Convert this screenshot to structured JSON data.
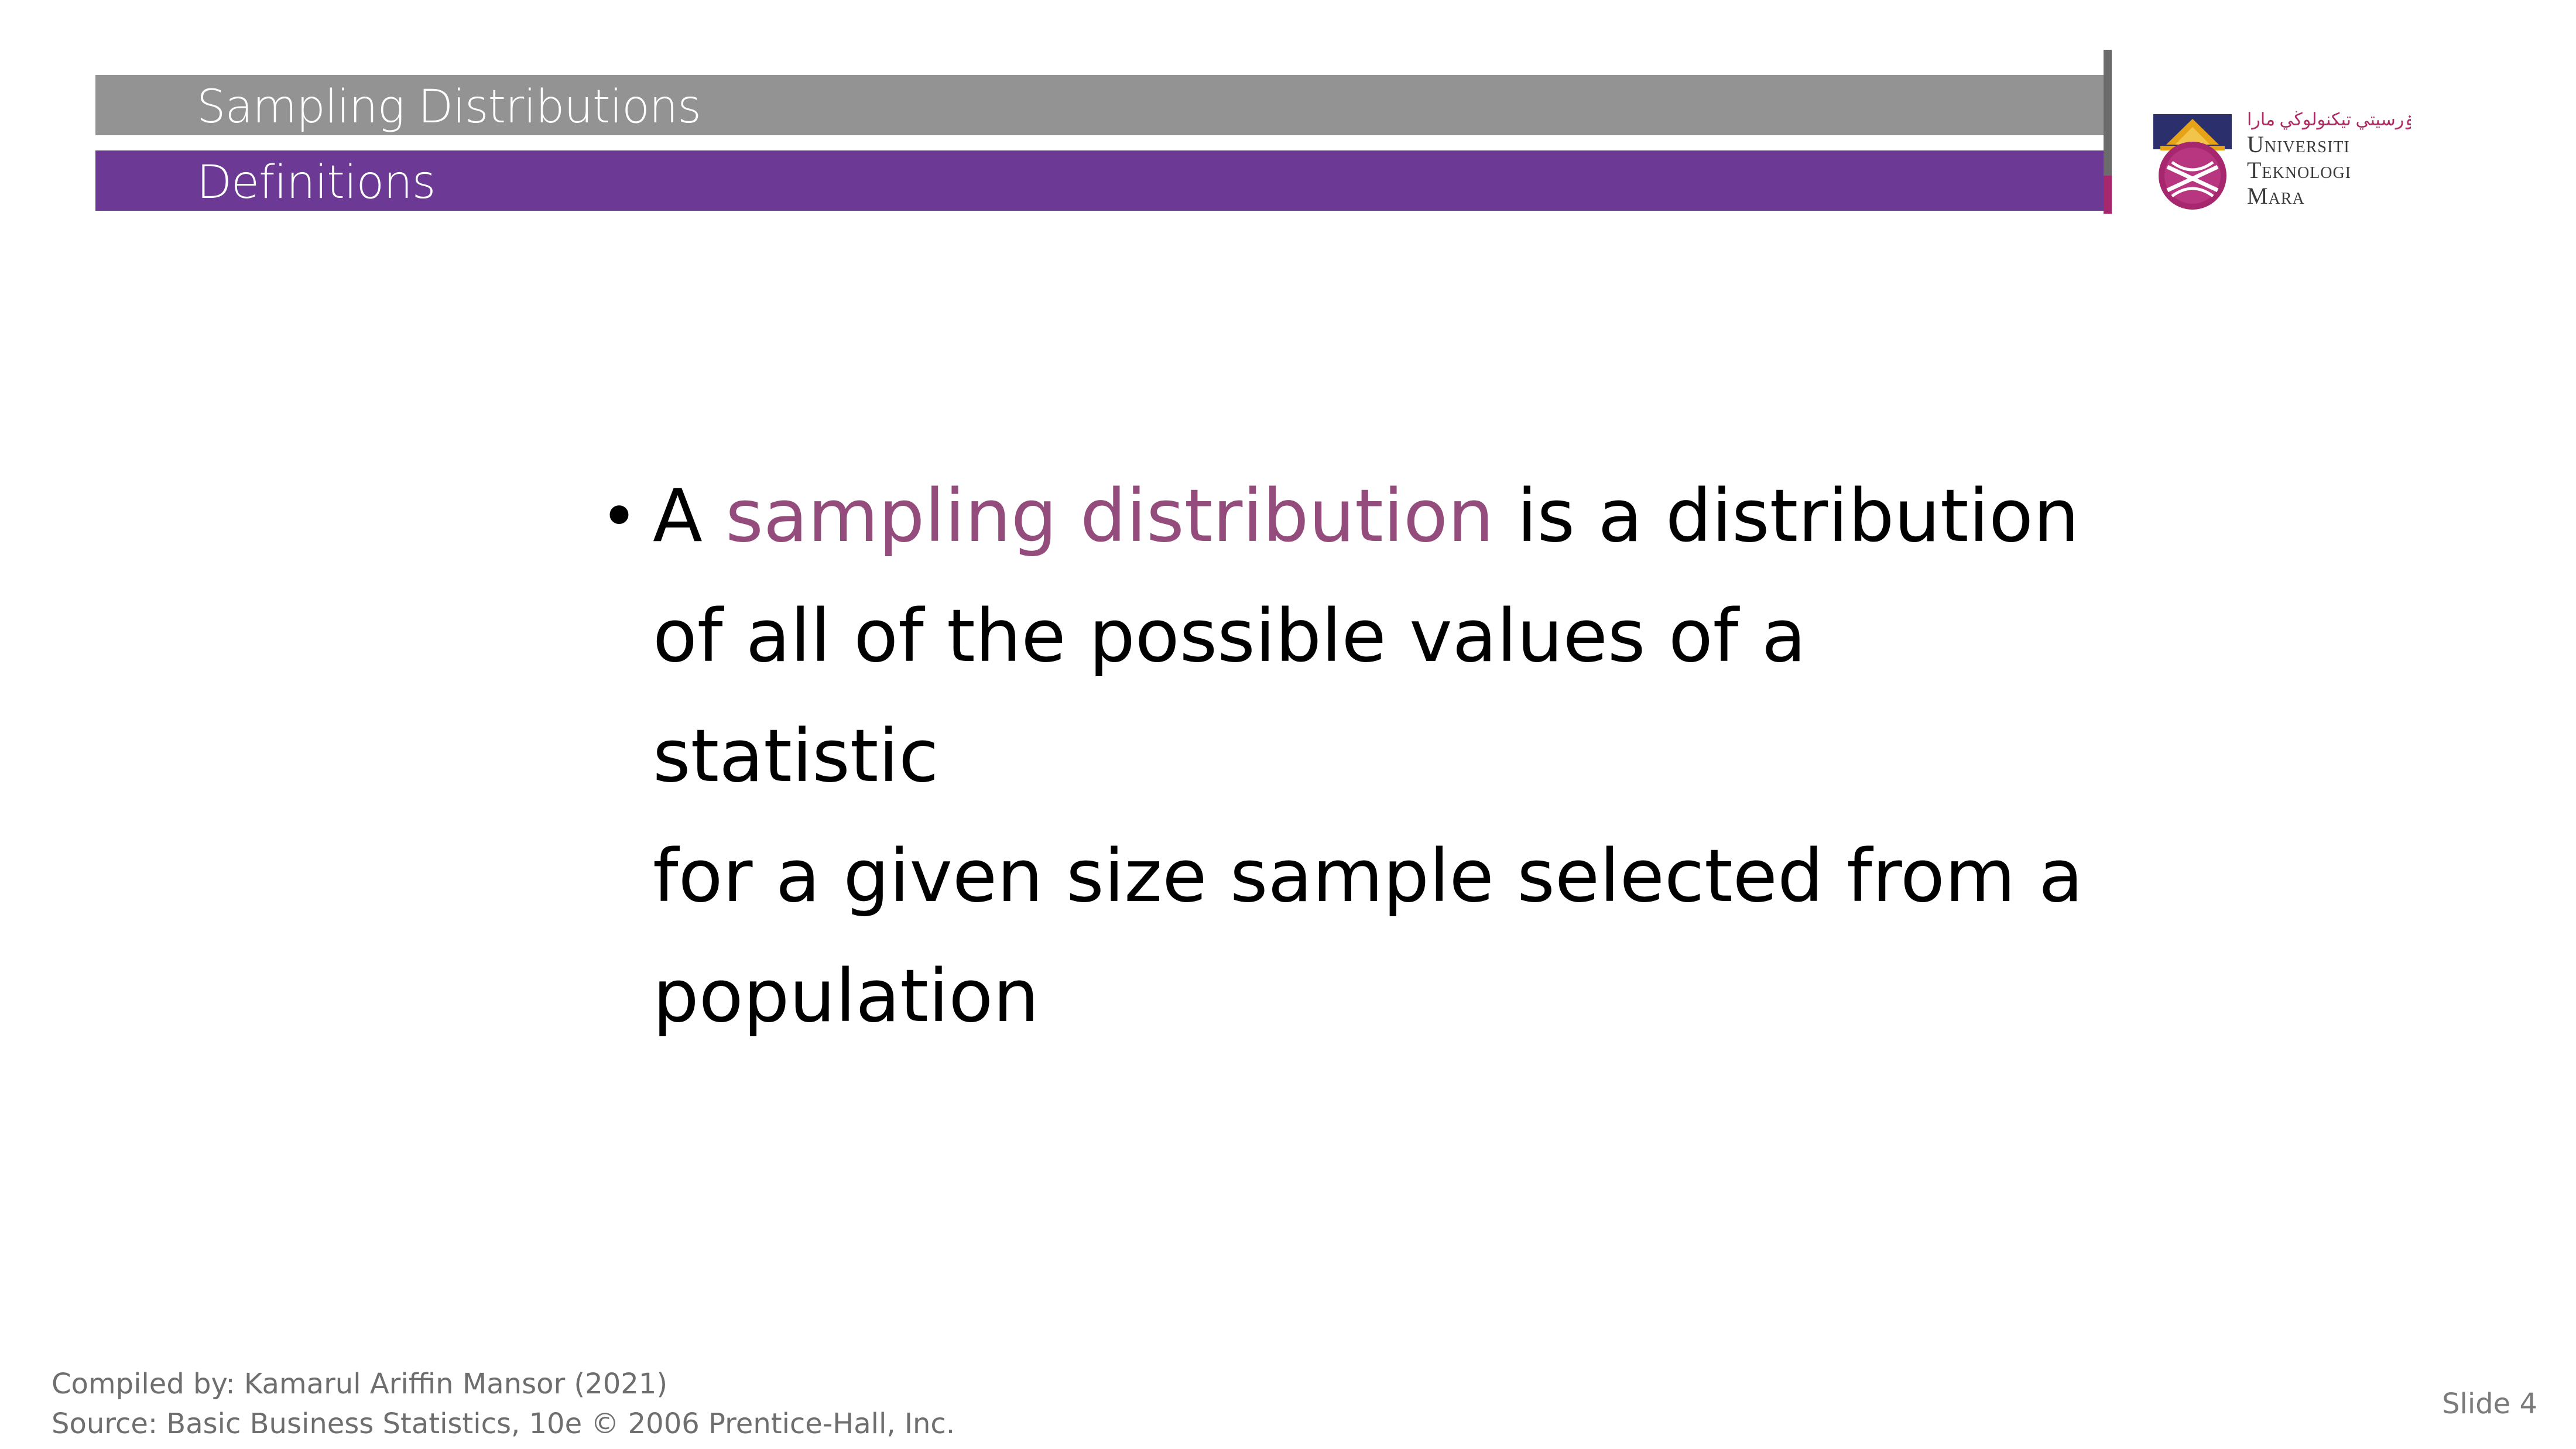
{
  "header": {
    "section_title": "Sampling Distributions",
    "subsection_title": "Definitions"
  },
  "logo": {
    "arabic_text": "اونيۏرسيتي تيكنولوڬي مارا",
    "line1": "Universiti",
    "line2": "Teknologi",
    "line3": "Mara",
    "colors": {
      "purple": "#6c3a94",
      "magenta": "#a7276f",
      "gold": "#e7a317",
      "navy": "#2b2f6b"
    }
  },
  "content": {
    "bullet_symbol": "•",
    "bullet_prefix": "A ",
    "bullet_term": "sampling distribution",
    "bullet_rest_line1": " is a distribution",
    "bullet_line2": "of all of the possible values of a statistic",
    "bullet_line3": "for a given size sample selected from a",
    "bullet_line4": "population",
    "term_color": "#934c7c"
  },
  "footer": {
    "compiled_by": "Compiled by: Kamarul Ariffin Mansor (2021)",
    "source": "Source: Basic Business Statistics, 10e © 2006 Prentice-Hall, Inc.",
    "slide_number": "Slide 4"
  }
}
